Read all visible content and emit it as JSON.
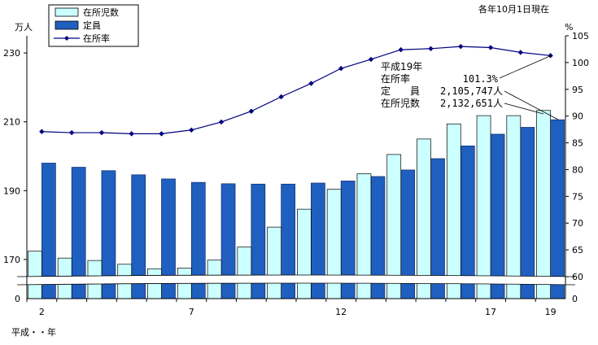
{
  "chart_data": {
    "type": "bar",
    "date_note": "各年10月1日現在",
    "y_left_unit": "万人",
    "y_right_unit": "%",
    "x_caption": "平成・・年",
    "x": [
      2,
      3,
      4,
      5,
      6,
      7,
      8,
      9,
      10,
      11,
      12,
      13,
      14,
      15,
      16,
      17,
      18,
      19
    ],
    "x_tick_labels": [
      "2",
      "7",
      "12",
      "17",
      "19"
    ],
    "x_tick_values": [
      2,
      7,
      12,
      17,
      19
    ],
    "y_left_ticks": [
      170,
      190,
      210,
      230
    ],
    "y_left_bottom_label": "0",
    "y_left_range": [
      165,
      235
    ],
    "y_right_ticks": [
      60,
      65,
      70,
      75,
      80,
      85,
      90,
      95,
      100,
      105
    ],
    "y_right_bottom_label": "0",
    "y_right_range": [
      60,
      105
    ],
    "series": [
      {
        "name": "在所児数",
        "kind": "bar",
        "axis": "left",
        "color": "#ccffff",
        "values": [
          172.4,
          170.4,
          169.7,
          168.6,
          167.3,
          167.5,
          169.8,
          173.6,
          179.4,
          184.6,
          190.4,
          194.9,
          200.5,
          205.0,
          209.4,
          211.8,
          211.8,
          213.3
        ]
      },
      {
        "name": "定員",
        "kind": "bar",
        "axis": "left",
        "color": "#1f5fbf",
        "values": [
          198.0,
          196.8,
          195.8,
          194.6,
          193.4,
          192.4,
          192.0,
          191.9,
          191.9,
          192.2,
          192.8,
          194.1,
          196.0,
          199.3,
          203.0,
          206.4,
          208.4,
          210.6
        ]
      },
      {
        "name": "在所率",
        "kind": "line",
        "axis": "right",
        "color": "#000080",
        "values": [
          87.1,
          86.9,
          86.9,
          86.7,
          86.7,
          87.4,
          88.9,
          90.9,
          93.6,
          96.1,
          98.9,
          100.6,
          102.4,
          102.6,
          103.0,
          102.8,
          101.9,
          101.3
        ]
      }
    ],
    "annotation": {
      "title": "平成19年",
      "rows": [
        {
          "label": "在所率",
          "value": "101.3%"
        },
        {
          "label": "定　　員",
          "value": "2,105,747人"
        },
        {
          "label": "在所児数",
          "value": "2,132,651人"
        }
      ]
    }
  }
}
